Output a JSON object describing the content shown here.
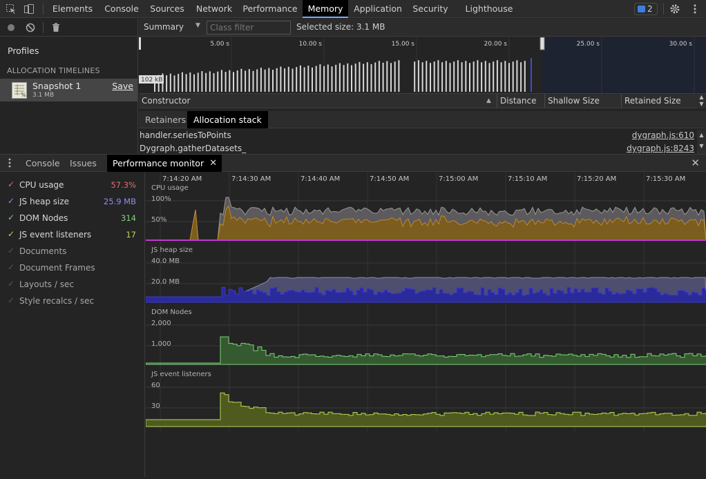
{
  "toolbar": {
    "tabs": [
      {
        "label": "Elements"
      },
      {
        "label": "Console"
      },
      {
        "label": "Sources"
      },
      {
        "label": "Network"
      },
      {
        "label": "Performance"
      },
      {
        "label": "Memory"
      },
      {
        "label": "Application"
      },
      {
        "label": "Security"
      },
      {
        "label": "Lighthouse"
      }
    ],
    "active_tab": "Memory",
    "issues_count": "2"
  },
  "profiles": {
    "title": "Profiles",
    "section": "ALLOCATION TIMELINES",
    "snapshot": {
      "name": "Snapshot 1",
      "size": "3.1 MB",
      "save_label": "Save"
    }
  },
  "memory": {
    "view_select": "Summary",
    "class_filter_placeholder": "Class filter",
    "selected_size": "Selected size: 3.1 MB",
    "timeline_ticks": [
      "5.00 s",
      "10.00 s",
      "15.00 s",
      "20.00 s",
      "25.00 s",
      "30.00 s"
    ],
    "timeline_scale_label": "102 kB",
    "columns": {
      "constructor": "Constructor",
      "distance": "Distance",
      "shallow": "Shallow Size",
      "retained": "Retained Size"
    },
    "bottom_tabs": [
      "Retainers",
      "Allocation stack"
    ],
    "stack": [
      {
        "fn": "handler.seriesToPoints",
        "loc": "dygraph.js:610"
      },
      {
        "fn": "Dygraph.gatherDatasets_",
        "loc": "dygraph.js:8243"
      }
    ]
  },
  "drawer": {
    "tabs": [
      "Console",
      "Issues",
      "Performance monitor"
    ]
  },
  "perfmon": {
    "metrics": [
      {
        "label": "CPU usage",
        "value": "57.3%",
        "checked": true,
        "color": "#e06c75"
      },
      {
        "label": "JS heap size",
        "value": "25.9 MB",
        "checked": true,
        "color": "#8c8cf0"
      },
      {
        "label": "DOM Nodes",
        "value": "314",
        "checked": true,
        "color": "#7fd17f"
      },
      {
        "label": "JS event listeners",
        "value": "17",
        "checked": true,
        "color": "#b6d957"
      },
      {
        "label": "Documents",
        "value": "",
        "checked": false,
        "color": "#555555"
      },
      {
        "label": "Document Frames",
        "value": "",
        "checked": false,
        "color": "#555555"
      },
      {
        "label": "Layouts / sec",
        "value": "",
        "checked": false,
        "color": "#555555"
      },
      {
        "label": "Style recalcs / sec",
        "value": "",
        "checked": false,
        "color": "#555555"
      }
    ],
    "time_ticks": [
      "7:14:20 AM",
      "7:14:30 AM",
      "7:14:40 AM",
      "7:14:50 AM",
      "7:15:00 AM",
      "7:15:10 AM",
      "7:15:20 AM",
      "7:15:30 AM"
    ],
    "graphs": [
      {
        "title": "CPU usage",
        "scale": [
          "100%",
          "50%"
        ]
      },
      {
        "title": "JS heap size",
        "scale": [
          "40.0 MB",
          "20.0 MB"
        ]
      },
      {
        "title": "DOM Nodes",
        "scale": [
          "2,000",
          "1,000"
        ]
      },
      {
        "title": "JS event listeners",
        "scale": [
          "60",
          "30"
        ]
      }
    ]
  }
}
